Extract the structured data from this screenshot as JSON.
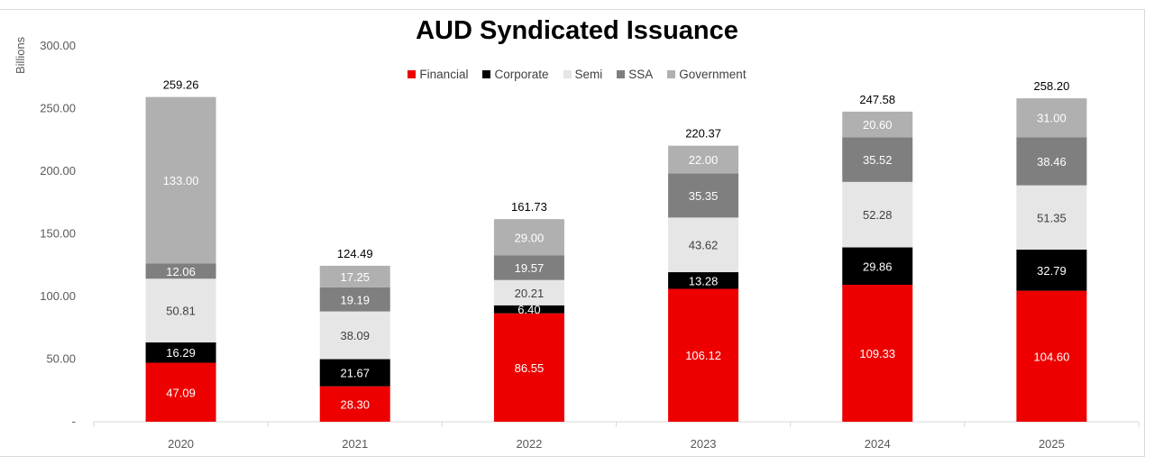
{
  "chart_data": {
    "type": "bar",
    "stacked": true,
    "title": "AUD Syndicated Issuance",
    "ylabel": "Billions",
    "xlabel": "",
    "ylim": [
      0,
      300
    ],
    "yticks": [
      "-",
      "50.00",
      "100.00",
      "150.00",
      "200.00",
      "250.00",
      "300.00"
    ],
    "grid": false,
    "legend_position": "top",
    "categories": [
      "2020",
      "2021",
      "2022",
      "2023",
      "2024",
      "2025"
    ],
    "series": [
      {
        "name": "Financial",
        "color": "#ee0000",
        "label_color": "#ffffff",
        "values": [
          47.09,
          28.3,
          86.55,
          106.12,
          109.33,
          104.6
        ]
      },
      {
        "name": "Corporate",
        "color": "#000000",
        "label_color": "#ffffff",
        "values": [
          16.29,
          21.67,
          6.4,
          13.28,
          29.86,
          32.79
        ]
      },
      {
        "name": "Semi",
        "color": "#e6e6e6",
        "label_color": "#404040",
        "values": [
          50.81,
          38.09,
          20.21,
          43.62,
          52.28,
          51.35
        ]
      },
      {
        "name": "SSA",
        "color": "#7f7f7f",
        "label_color": "#ffffff",
        "values": [
          12.06,
          19.19,
          19.57,
          35.35,
          35.52,
          38.46
        ]
      },
      {
        "name": "Government",
        "color": "#b0b0b0",
        "label_color": "#ffffff",
        "values": [
          133.0,
          17.25,
          29.0,
          22.0,
          20.6,
          31.0
        ]
      }
    ],
    "totals": [
      "259.26",
      "124.49",
      "161.73",
      "220.37",
      "247.58",
      "258.20"
    ]
  }
}
